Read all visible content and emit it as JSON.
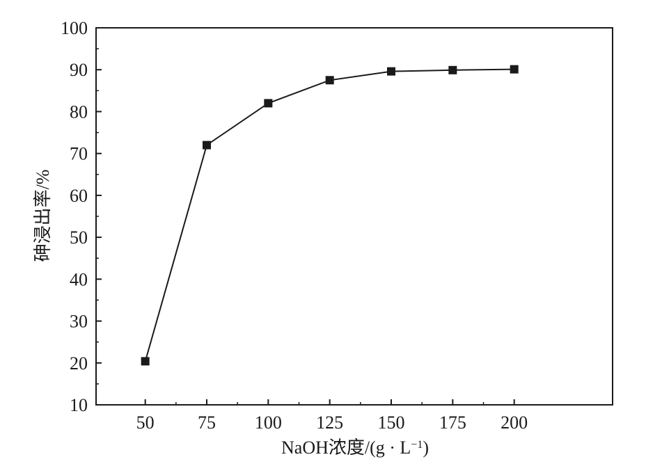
{
  "chart_data": {
    "type": "line",
    "title": "",
    "xlabel": "NaOH浓度/(g · L",
    "xlabel_sup": "−1",
    "xlabel_tail": ")",
    "ylabel": "砷浸出率/%",
    "xlim": [
      30,
      240
    ],
    "ylim": [
      10,
      100
    ],
    "x_ticks": [
      50,
      75,
      100,
      125,
      150,
      175,
      200
    ],
    "y_ticks": [
      10,
      20,
      30,
      40,
      50,
      60,
      70,
      80,
      90,
      100
    ],
    "grid": false,
    "legend": "none",
    "marker": "square",
    "colors": {
      "line": "#1a1a1a",
      "marker": "#1a1a1a",
      "axis": "#1a1a1a"
    },
    "series": [
      {
        "x": [
          50,
          75,
          100,
          125,
          150,
          175,
          200
        ],
        "values": [
          20.4,
          72.0,
          82.0,
          87.5,
          89.6,
          89.9,
          90.1
        ]
      }
    ]
  }
}
